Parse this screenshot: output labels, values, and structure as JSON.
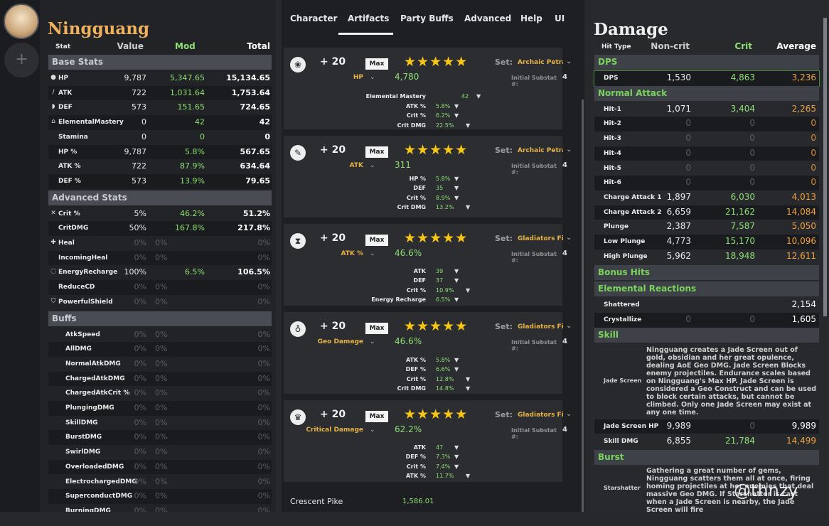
{
  "character": {
    "name": "Ningguang"
  },
  "stat_headers": [
    "Stat",
    "Value",
    "Mod",
    "Total"
  ],
  "sections": {
    "base": "Base Stats",
    "advanced": "Advanced Stats",
    "buffs": "Buffs"
  },
  "base_stats": [
    {
      "label": "HP",
      "icon": "droplet-icon",
      "glyph": "●",
      "value": "9,787",
      "mod": "5,347.65",
      "total": "15,134.65"
    },
    {
      "label": "ATK",
      "icon": "sword-icon",
      "glyph": "/",
      "value": "722",
      "mod": "1,031.64",
      "total": "1,753.64"
    },
    {
      "label": "DEF",
      "icon": "shield-icon",
      "glyph": "◗",
      "value": "573",
      "mod": "151.65",
      "total": "724.65"
    },
    {
      "label": "ElementalMastery",
      "icon": "elemental-mastery-icon",
      "glyph": "⌂",
      "value": "0",
      "mod": "42",
      "total": "42"
    },
    {
      "label": "Stamina",
      "icon": "",
      "glyph": "",
      "value": "0",
      "mod": "0",
      "total": "0"
    },
    {
      "label": "HP %",
      "icon": "",
      "glyph": "",
      "value": "9,787",
      "mod": "5.8%",
      "total": "567.65"
    },
    {
      "label": "ATK %",
      "icon": "",
      "glyph": "",
      "value": "722",
      "mod": "87.9%",
      "total": "634.64"
    },
    {
      "label": "DEF %",
      "icon": "",
      "glyph": "",
      "value": "573",
      "mod": "13.9%",
      "total": "79.65"
    }
  ],
  "advanced_stats": [
    {
      "label": "Crit %",
      "icon": "crit-icon",
      "glyph": "✕",
      "value": "5%",
      "mod": "46.2%",
      "total": "51.2%"
    },
    {
      "label": "CritDMG",
      "icon": "",
      "glyph": "",
      "value": "50%",
      "mod": "167.8%",
      "total": "217.8%"
    },
    {
      "label": "Heal",
      "icon": "heal-cross-icon",
      "glyph": "✚",
      "value": "0%",
      "mod": "0%",
      "total": "0%"
    },
    {
      "label": "IncomingHeal",
      "icon": "",
      "glyph": "",
      "value": "0%",
      "mod": "0%",
      "total": "0%"
    },
    {
      "label": "EnergyRecharge",
      "icon": "energy-recharge-icon",
      "glyph": "◌",
      "value": "100%",
      "mod": "6.5%",
      "total": "106.5%"
    },
    {
      "label": "ReduceCD",
      "icon": "",
      "glyph": "",
      "value": "0%",
      "mod": "0%",
      "total": "0%"
    },
    {
      "label": "PowerfulShield",
      "icon": "shield-strength-icon",
      "glyph": "⛉",
      "value": "0%",
      "mod": "0%",
      "total": "0%"
    }
  ],
  "buffs": [
    {
      "label": "AtkSpeed",
      "value": "0%",
      "mod": "0%",
      "total": "0%"
    },
    {
      "label": "AllDMG",
      "value": "0%",
      "mod": "0%",
      "total": "0%"
    },
    {
      "label": "NormalAtkDMG",
      "value": "0%",
      "mod": "0%",
      "total": "0%"
    },
    {
      "label": "ChargedAtkDMG",
      "value": "0%",
      "mod": "0%",
      "total": "0%"
    },
    {
      "label": "ChargedAtkCrit %",
      "value": "0%",
      "mod": "0%",
      "total": "0%"
    },
    {
      "label": "PlungingDMG",
      "value": "0%",
      "mod": "0%",
      "total": "0%"
    },
    {
      "label": "SkillDMG",
      "value": "0%",
      "mod": "0%",
      "total": "0%"
    },
    {
      "label": "BurstDMG",
      "value": "0%",
      "mod": "0%",
      "total": "0%"
    },
    {
      "label": "SwirlDMG",
      "value": "0%",
      "mod": "0%",
      "total": "0%"
    },
    {
      "label": "OverloadedDMG",
      "value": "0%",
      "mod": "0%",
      "total": "0%"
    },
    {
      "label": "ElectrochargedDMG",
      "value": "0%",
      "mod": "0%",
      "total": "0%"
    },
    {
      "label": "SuperconductDMG",
      "value": "0%",
      "mod": "0%",
      "total": "0%"
    },
    {
      "label": "BurningDMG",
      "value": "0%",
      "mod": "0%",
      "total": "0%"
    }
  ],
  "tabs": [
    "Character",
    "Artifacts",
    "Party Buffs",
    "Advanced",
    "Help",
    "UI"
  ],
  "active_tab": "Artifacts",
  "artifacts": [
    {
      "icon": "flower-icon",
      "glyph": "❀",
      "level": "+ 20",
      "max": "Max",
      "stars": "★★★★★",
      "set_label": "Set:",
      "set": "Archaic Petra",
      "main_label": "HP",
      "main_value": "4,780",
      "initial_label": "Initial Substat #:",
      "initial_value": "4",
      "subs": [
        {
          "label": "Elemental Mastery",
          "value": "42"
        },
        {
          "label": "ATK %",
          "value": "5.8%"
        },
        {
          "label": "Crit %",
          "value": "6.2%"
        },
        {
          "label": "Crit DMG",
          "value": "22.5%"
        }
      ]
    },
    {
      "icon": "feather-icon",
      "glyph": "✎",
      "level": "+ 20",
      "max": "Max",
      "stars": "★★★★★",
      "set_label": "Set:",
      "set": "Archaic Petra",
      "main_label": "ATK",
      "main_value": "311",
      "initial_label": "Initial Substat #:",
      "initial_value": "4",
      "subs": [
        {
          "label": "HP %",
          "value": "5.8%"
        },
        {
          "label": "DEF",
          "value": "35"
        },
        {
          "label": "Crit %",
          "value": "8.9%"
        },
        {
          "label": "Crit DMG",
          "value": "13.2%"
        }
      ]
    },
    {
      "icon": "hourglass-icon",
      "glyph": "⧗",
      "level": "+ 20",
      "max": "Max",
      "stars": "★★★★★",
      "set_label": "Set:",
      "set": "Gladiators Finale",
      "main_label": "ATK %",
      "main_value": "46.6%",
      "initial_label": "Initial Substat #:",
      "initial_value": "4",
      "subs": [
        {
          "label": "ATK",
          "value": "39"
        },
        {
          "label": "DEF",
          "value": "37"
        },
        {
          "label": "Crit %",
          "value": "10.9%"
        },
        {
          "label": "Energy Recharge",
          "value": "6.5%"
        }
      ]
    },
    {
      "icon": "goblet-icon",
      "glyph": "♁",
      "level": "+ 20",
      "max": "Max",
      "stars": "★★★★★",
      "set_label": "Set:",
      "set": "Gladiators Finale",
      "main_label": "Geo Damage",
      "main_value": "46.6%",
      "initial_label": "Initial Substat #:",
      "initial_value": "4",
      "subs": [
        {
          "label": "ATK %",
          "value": "5.8%"
        },
        {
          "label": "DEF %",
          "value": "6.6%"
        },
        {
          "label": "Crit %",
          "value": "12.8%"
        },
        {
          "label": "Crit DMG",
          "value": "14.8%"
        }
      ]
    },
    {
      "icon": "circlet-icon",
      "glyph": "♛",
      "level": "+ 20",
      "max": "Max",
      "stars": "★★★★★",
      "set_label": "Set:",
      "set": "Gladiators Finale",
      "main_label": "Critical Damage",
      "main_value": "62.2%",
      "initial_label": "Initial Substat #:",
      "initial_value": "4",
      "subs": [
        {
          "label": "ATK",
          "value": "47"
        },
        {
          "label": "DEF %",
          "value": "7.3%"
        },
        {
          "label": "Crit %",
          "value": "7.4%"
        },
        {
          "label": "ATK %",
          "value": "11.7%"
        }
      ]
    }
  ],
  "weapon": {
    "name": "Crescent Pike",
    "value": "1,586.01"
  },
  "damage": {
    "title": "Damage",
    "headers": [
      "Hit Type",
      "Non-crit",
      "Crit",
      "Average"
    ],
    "sections": [
      {
        "title": "DPS",
        "rows": [
          {
            "label": "DPS",
            "non_crit": "1,530",
            "crit": "4,863",
            "avg": "3,236",
            "dim": false
          }
        ]
      },
      {
        "title": "Normal Attack",
        "rows": [
          {
            "label": "Hit-1",
            "non_crit": "1,071",
            "crit": "3,404",
            "avg": "2,265",
            "dim": false
          },
          {
            "label": "Hit-2",
            "non_crit": "0",
            "crit": "0",
            "avg": "0",
            "dim": true
          },
          {
            "label": "Hit-3",
            "non_crit": "0",
            "crit": "0",
            "avg": "0",
            "dim": true
          },
          {
            "label": "Hit-4",
            "non_crit": "0",
            "crit": "0",
            "avg": "0",
            "dim": true
          },
          {
            "label": "Hit-5",
            "non_crit": "0",
            "crit": "0",
            "avg": "0",
            "dim": true
          },
          {
            "label": "Hit-6",
            "non_crit": "0",
            "crit": "0",
            "avg": "0",
            "dim": true
          },
          {
            "label": "Charge Attack 1",
            "non_crit": "1,897",
            "crit": "6,030",
            "avg": "4,013",
            "dim": false
          },
          {
            "label": "Charge Attack 2",
            "non_crit": "6,659",
            "crit": "21,162",
            "avg": "14,084",
            "dim": false
          },
          {
            "label": "Plunge",
            "non_crit": "2,387",
            "crit": "7,587",
            "avg": "5,050",
            "dim": false
          },
          {
            "label": "Low Plunge",
            "non_crit": "4,773",
            "crit": "15,170",
            "avg": "10,096",
            "dim": false
          },
          {
            "label": "High Plunge",
            "non_crit": "5,962",
            "crit": "18,948",
            "avg": "12,611",
            "dim": false
          }
        ]
      },
      {
        "title": "Bonus Hits",
        "rows": []
      },
      {
        "title": "Elemental Reactions",
        "rows": [
          {
            "label": "Shattered",
            "non_crit": "",
            "crit": "",
            "avg": "2,154",
            "dim": false,
            "white": true
          },
          {
            "label": "Crystallize",
            "non_crit": "0",
            "crit": "0",
            "avg": "1,605",
            "dim": true,
            "white": true
          }
        ]
      },
      {
        "title": "Skill",
        "rows": []
      }
    ],
    "skill_desc": {
      "label": "Jade Screen",
      "text": "Ningguang creates a Jade Screen out of gold, obsidian and her great opulence, dealing AoE Geo DMG. Jade Screen Blocks enemy projectiles. Endurance scales based on Ningguang's Max HP. Jade Screen is considered a Geo Construct and can be used to block certain attacks, but cannot be climbed. Only one Jade Screen may exist at any one time."
    },
    "skill_rows": [
      {
        "label": "Jade Screen HP",
        "non_crit": "9,989",
        "crit": "0",
        "avg": "9,989"
      },
      {
        "label": "Skill DMG",
        "non_crit": "6,855",
        "crit": "21,784",
        "avg": "14,499"
      }
    ],
    "burst_title": "Burst",
    "burst_desc": {
      "label": "Starshatter",
      "text": "Gathering a great number of gems, Ningguang scatters them all at once, firing homing projectiles at her enemies that deal massive Geo DMG. If Starshatter is cast when a Jade Screen is nearby, the Jade Screen will fire"
    }
  },
  "watermark": "@thnzy",
  "colors": {
    "accent_gold": "#f0b15e",
    "mod_green": "#8fe074",
    "avg_orange": "#f2a23e",
    "section_green": "#79d35c",
    "star_yellow": "#f5c518"
  }
}
